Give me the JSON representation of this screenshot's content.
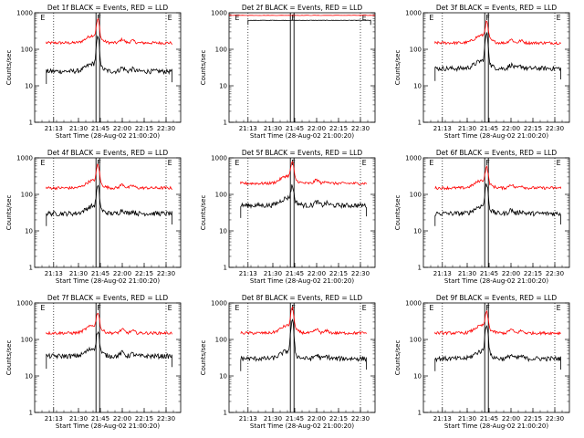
{
  "chart_data": {
    "type": "line",
    "start_time_label": "Start Time (28-Aug-02 21:00:20)",
    "ylabel": "Counts/sec",
    "yscale": "log",
    "ylim": [
      1,
      1000
    ],
    "yticks": [
      1,
      10,
      100,
      1000
    ],
    "xlim_minutes": [
      0,
      100
    ],
    "xticks_minutes": [
      13,
      30,
      45,
      60,
      75,
      90
    ],
    "xtick_labels": [
      "21:13",
      "21:30",
      "21:45",
      "22:00",
      "22:15",
      "22:30"
    ],
    "markers": [
      {
        "label": "F",
        "x_min": 42,
        "x_min2": 44.5
      },
      {
        "label": "E",
        "x_min": 91
      },
      {
        "label": "E",
        "x_min": 4
      }
    ],
    "colors": {
      "events": "#000000",
      "lld": "#ff0000",
      "markers": "#000000"
    },
    "panels": [
      {
        "title": "Det 1f BLACK = Events, RED = LLD",
        "events_base": 25,
        "lld_base": 150,
        "peak_events": 200,
        "peak_lld": 600,
        "flat": false
      },
      {
        "title": "Det 2f BLACK = Events, RED = LLD",
        "events_base": 620,
        "lld_base": 850,
        "peak_events": 620,
        "peak_lld": 850,
        "flat": true
      },
      {
        "title": "Det 3f BLACK = Events, RED = LLD",
        "events_base": 30,
        "lld_base": 150,
        "peak_events": 250,
        "peak_lld": 500,
        "flat": false
      },
      {
        "title": "Det 4f BLACK = Events, RED = LLD",
        "events_base": 30,
        "lld_base": 150,
        "peak_events": 150,
        "peak_lld": 600,
        "flat": false
      },
      {
        "title": "Det 5f BLACK = Events, RED = LLD",
        "events_base": 50,
        "lld_base": 200,
        "peak_events": 150,
        "peak_lld": 700,
        "flat": false
      },
      {
        "title": "Det 6f BLACK = Events, RED = LLD",
        "events_base": 30,
        "lld_base": 150,
        "peak_events": 180,
        "peak_lld": 500,
        "flat": false
      },
      {
        "title": "Det 7f BLACK = Events, RED = LLD",
        "events_base": 35,
        "lld_base": 150,
        "peak_events": 150,
        "peak_lld": 500,
        "flat": false
      },
      {
        "title": "Det 8f BLACK = Events, RED = LLD",
        "events_base": 30,
        "lld_base": 150,
        "peak_events": 300,
        "peak_lld": 700,
        "flat": false
      },
      {
        "title": "Det 9f BLACK = Events, RED = LLD",
        "events_base": 30,
        "lld_base": 150,
        "peak_events": 250,
        "peak_lld": 500,
        "flat": false
      }
    ]
  }
}
